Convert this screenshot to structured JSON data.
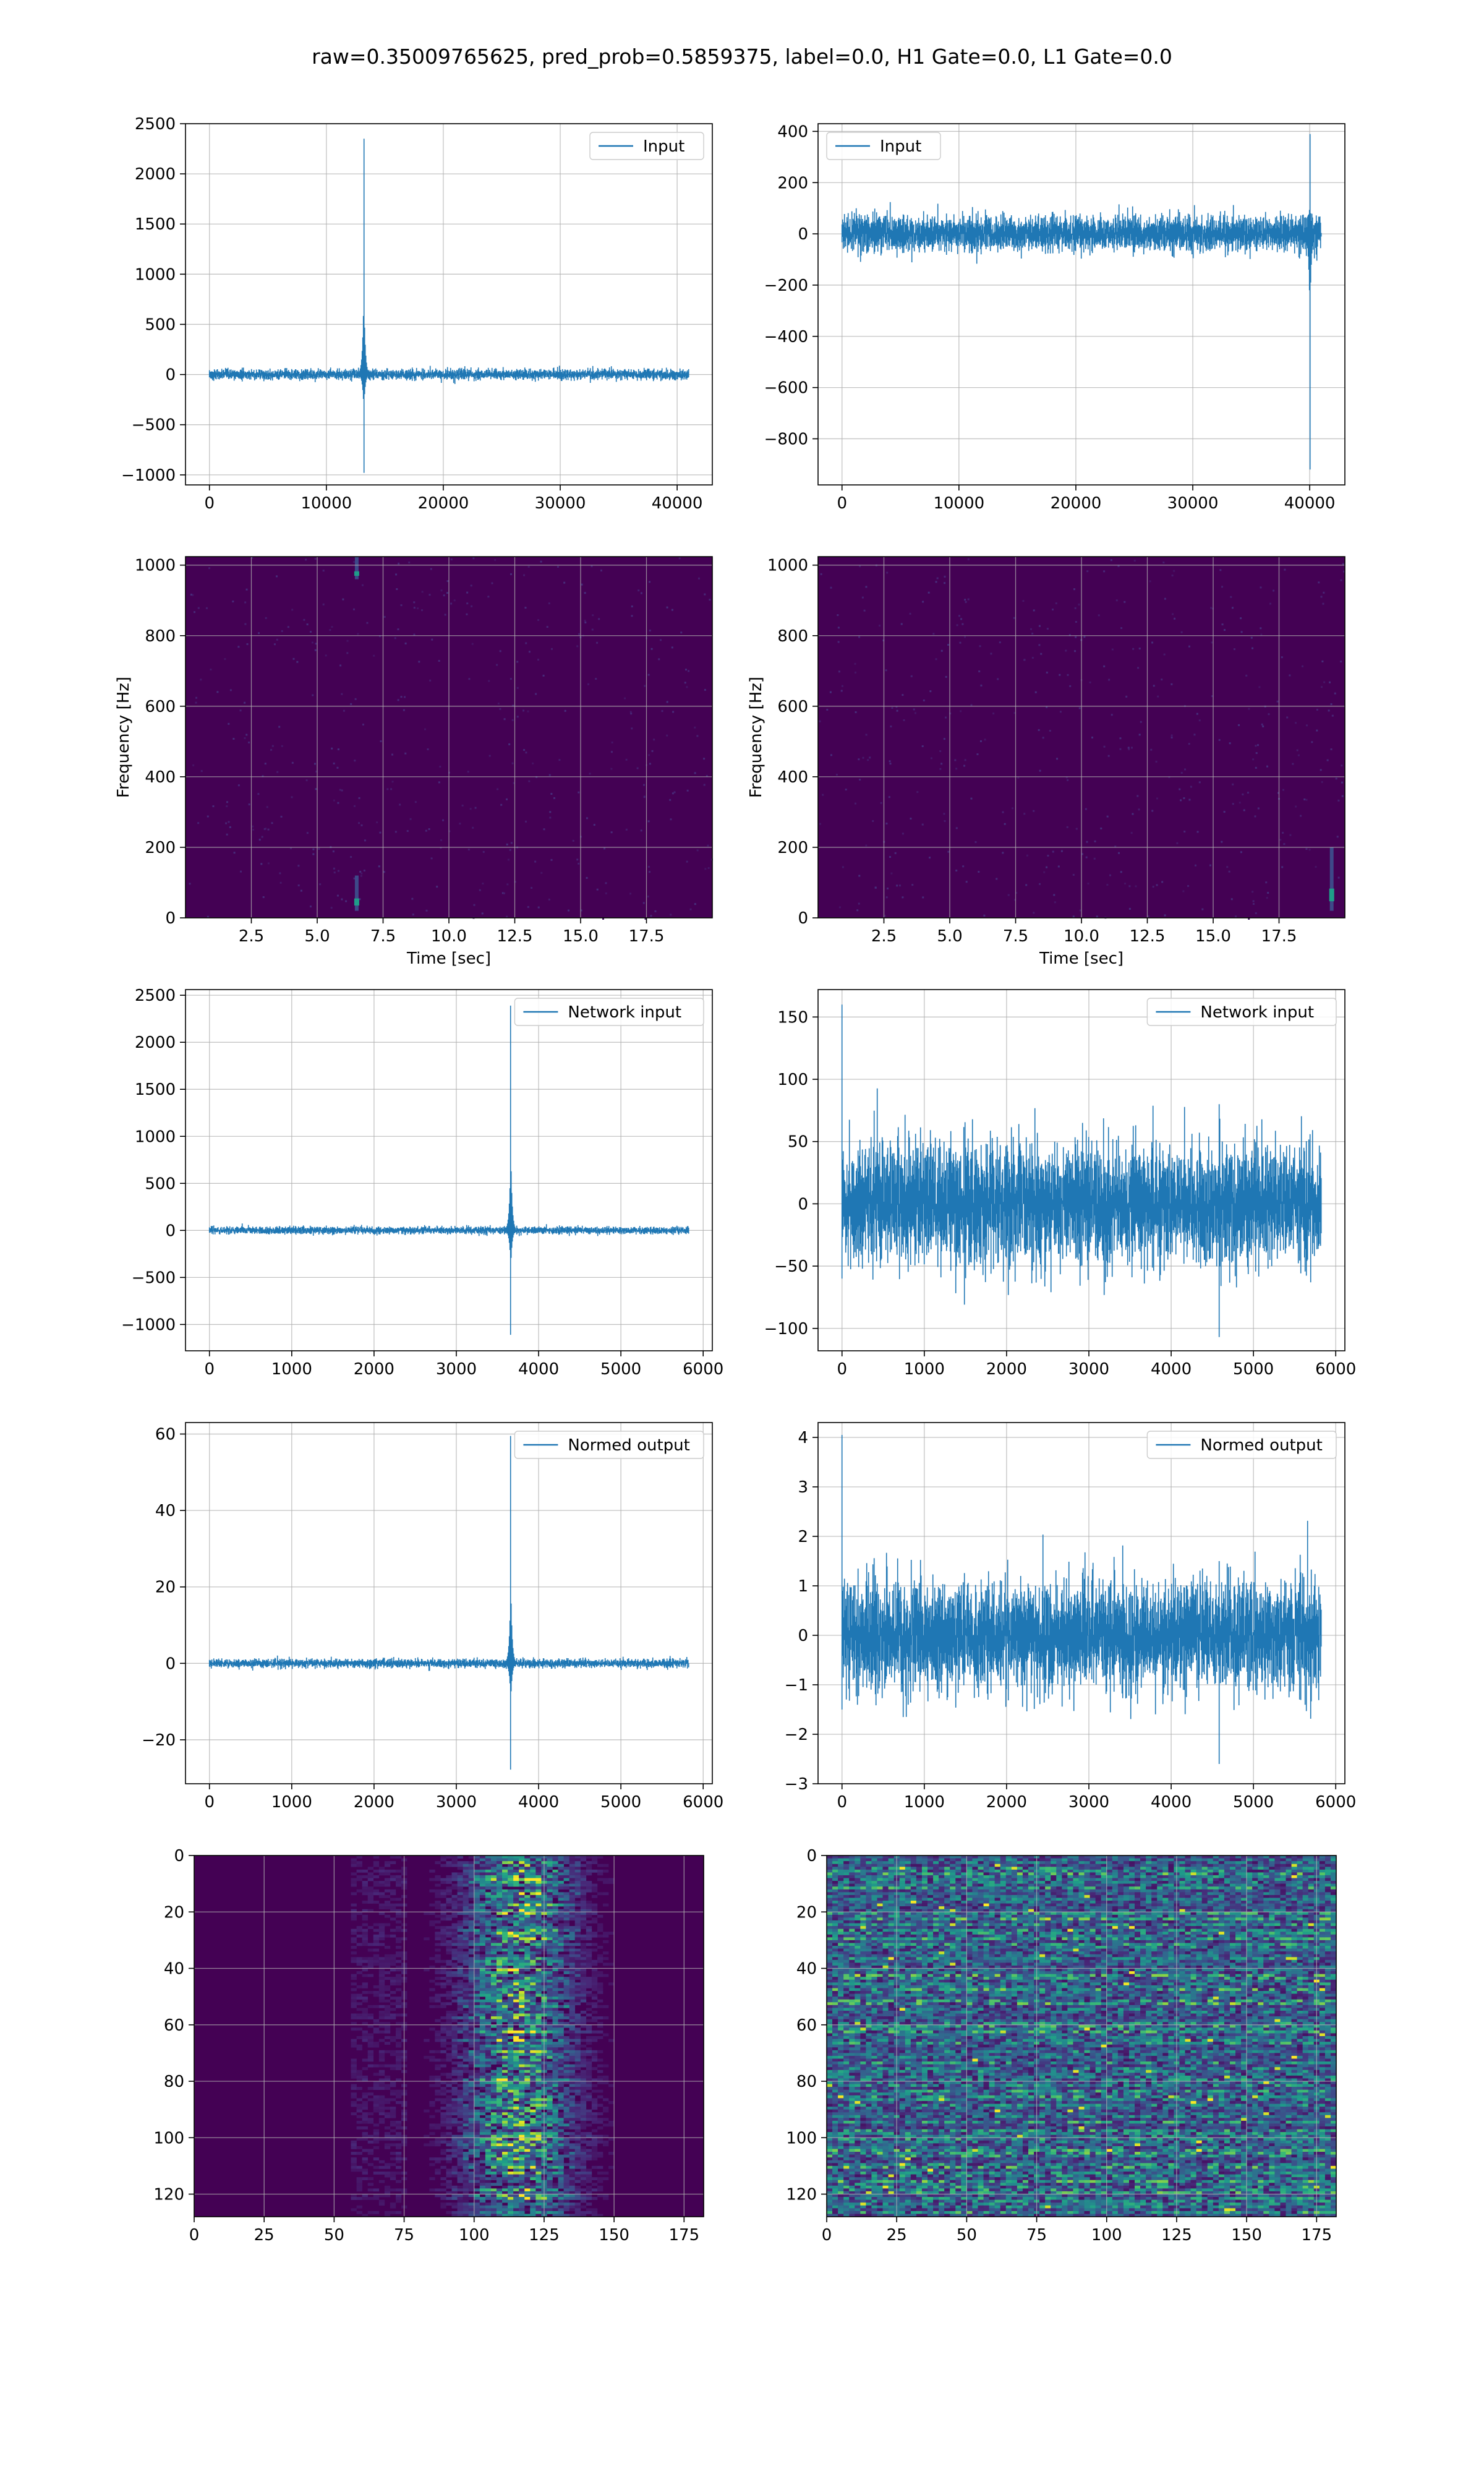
{
  "figure": {
    "suptitle": "raw=0.35009765625, pred_prob=0.5859375, label=0.0, H1 Gate=0.0, L1 Gate=0.0"
  },
  "colors": {
    "line": "#1f77b4",
    "grid": "#b0b0b0",
    "viridis_low": "#440154",
    "viridis_high": "#fde725"
  },
  "chart_data": [
    {
      "type": "line",
      "panel": "row1-left",
      "series": [
        {
          "name": "Input",
          "x_range": [
            0,
            40960
          ],
          "baseline_amplitude": 60,
          "spikes": [
            {
              "x": 13200,
              "peak": 2350,
              "trough": -980
            }
          ]
        }
      ],
      "xlim": [
        -2048,
        43008
      ],
      "ylim": [
        -1100,
        2500
      ],
      "xticks": [
        0,
        10000,
        20000,
        30000,
        40000
      ],
      "yticks": [
        -1000,
        -500,
        0,
        500,
        1000,
        1500,
        2000,
        2500
      ],
      "legend": "top-right",
      "grid": true,
      "xlabel": "",
      "ylabel": ""
    },
    {
      "type": "line",
      "panel": "row1-right",
      "series": [
        {
          "name": "Input",
          "x_range": [
            0,
            40960
          ],
          "baseline_amplitude": 80,
          "spikes": [
            {
              "x": 40000,
              "peak": 390,
              "trough": -920
            }
          ]
        }
      ],
      "xlim": [
        -2048,
        43008
      ],
      "ylim": [
        -980,
        430
      ],
      "xticks": [
        0,
        10000,
        20000,
        30000,
        40000
      ],
      "yticks": [
        -800,
        -600,
        -400,
        -200,
        0,
        200,
        400
      ],
      "legend": "top-left",
      "grid": true,
      "xlabel": "",
      "ylabel": ""
    },
    {
      "type": "heatmap",
      "panel": "row2-left",
      "xlim": [
        0,
        20
      ],
      "ylim": [
        0,
        1024
      ],
      "xticks": [
        "2.5",
        "5.0",
        "7.5",
        "10.0",
        "12.5",
        "15.0",
        "17.5"
      ],
      "yticks": [
        0,
        200,
        400,
        600,
        800,
        1000
      ],
      "xlabel": "Time [sec]",
      "ylabel": "Frequency [Hz]",
      "hotspots": [
        {
          "t": 6.5,
          "f_low": 960,
          "f_high": 1024
        },
        {
          "t": 6.5,
          "f_low": 20,
          "f_high": 120
        }
      ],
      "grid": true
    },
    {
      "type": "heatmap",
      "panel": "row2-right",
      "xlim": [
        0,
        20
      ],
      "ylim": [
        0,
        1024
      ],
      "xticks": [
        "2.5",
        "5.0",
        "7.5",
        "10.0",
        "12.5",
        "15.0",
        "17.5"
      ],
      "yticks": [
        0,
        200,
        400,
        600,
        800,
        1000
      ],
      "xlabel": "Time [sec]",
      "ylabel": "Frequency [Hz]",
      "hotspots": [
        {
          "t": 19.5,
          "f_low": 20,
          "f_high": 200
        }
      ],
      "grid": true
    },
    {
      "type": "line",
      "panel": "row3-left",
      "series": [
        {
          "name": "Network input",
          "x_range": [
            0,
            5820
          ],
          "baseline_amplitude": 45,
          "spikes": [
            {
              "x": 3660,
              "peak": 2390,
              "trough": -1110
            }
          ]
        }
      ],
      "xlim": [
        -291,
        6111
      ],
      "ylim": [
        -1280,
        2560
      ],
      "xticks": [
        0,
        1000,
        2000,
        3000,
        4000,
        5000,
        6000
      ],
      "yticks": [
        -1000,
        -500,
        0,
        500,
        1000,
        1500,
        2000,
        2500
      ],
      "legend": "top-right",
      "grid": true,
      "xlabel": "",
      "ylabel": ""
    },
    {
      "type": "line",
      "panel": "row3-right",
      "series": [
        {
          "name": "Network input",
          "x_range": [
            0,
            5820
          ],
          "baseline_amplitude": 55,
          "spikes": [
            {
              "x": 0,
              "peak": 160,
              "trough": -60
            },
            {
              "x": 4580,
              "peak": 80,
              "trough": -107
            }
          ]
        }
      ],
      "xlim": [
        -291,
        6111
      ],
      "ylim": [
        -118,
        172
      ],
      "xticks": [
        0,
        1000,
        2000,
        3000,
        4000,
        5000,
        6000
      ],
      "yticks": [
        -100,
        -50,
        0,
        50,
        100,
        150
      ],
      "legend": "top-right",
      "grid": true,
      "xlabel": "",
      "ylabel": ""
    },
    {
      "type": "line",
      "panel": "row4-left",
      "series": [
        {
          "name": "Normed output",
          "x_range": [
            0,
            5820
          ],
          "baseline_amplitude": 1.3,
          "spikes": [
            {
              "x": 3660,
              "peak": 59.5,
              "trough": -27.8
            }
          ]
        }
      ],
      "xlim": [
        -291,
        6111
      ],
      "ylim": [
        -31.5,
        63
      ],
      "xticks": [
        0,
        1000,
        2000,
        3000,
        4000,
        5000,
        6000
      ],
      "yticks": [
        -20,
        0,
        20,
        40,
        60
      ],
      "legend": "top-right",
      "grid": true,
      "xlabel": "",
      "ylabel": ""
    },
    {
      "type": "line",
      "panel": "row4-right",
      "series": [
        {
          "name": "Normed output",
          "x_range": [
            0,
            5820
          ],
          "baseline_amplitude": 1.25,
          "spikes": [
            {
              "x": 0,
              "peak": 4.05,
              "trough": -1.5
            },
            {
              "x": 4580,
              "peak": 1.5,
              "trough": -2.6
            }
          ]
        }
      ],
      "xlim": [
        -291,
        6111
      ],
      "ylim": [
        -3.0,
        4.3
      ],
      "xticks": [
        0,
        1000,
        2000,
        3000,
        4000,
        5000,
        6000
      ],
      "yticks": [
        -3,
        -2,
        -1,
        0,
        1,
        2,
        3,
        4
      ],
      "legend": "top-right",
      "grid": true,
      "xlabel": "",
      "ylabel": ""
    },
    {
      "type": "heatmap",
      "panel": "row5-left",
      "rows": 128,
      "cols": 182,
      "xlim": [
        0,
        182
      ],
      "ylim": [
        128,
        0
      ],
      "xticks": [
        0,
        25,
        50,
        75,
        100,
        125,
        150,
        175
      ],
      "yticks": [
        0,
        20,
        40,
        60,
        80,
        100,
        120
      ],
      "active_columns": [
        75,
        150
      ],
      "peak_cell": {
        "col": 115,
        "row": 64
      },
      "grid": true,
      "xlabel": "",
      "ylabel": ""
    },
    {
      "type": "heatmap",
      "panel": "row5-right",
      "rows": 128,
      "cols": 182,
      "xlim": [
        0,
        182
      ],
      "ylim": [
        128,
        0
      ],
      "xticks": [
        0,
        25,
        50,
        75,
        100,
        125,
        150,
        175
      ],
      "yticks": [
        0,
        20,
        40,
        60,
        80,
        100,
        120
      ],
      "active_columns": [
        0,
        182
      ],
      "grid": true,
      "xlabel": "",
      "ylabel": ""
    }
  ]
}
